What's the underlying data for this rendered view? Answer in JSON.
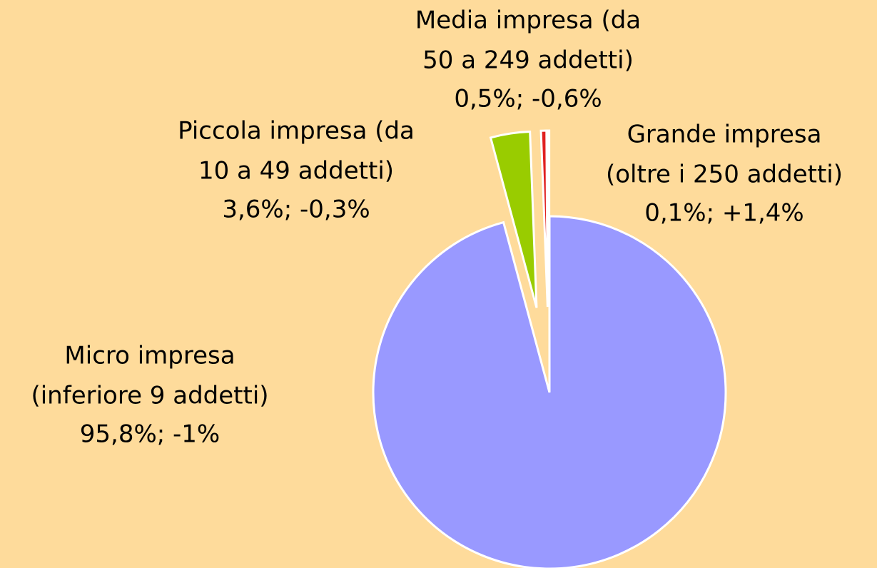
{
  "chart_data": {
    "type": "pie",
    "categories": [
      [
        "Micro impresa",
        "(inferiore 9 addetti)"
      ],
      [
        "Piccola impresa (da",
        "10 a 49 addetti)"
      ],
      [
        "Media impresa (da",
        "50 a 249 addetti)"
      ],
      [
        "Grande impresa",
        "(oltre i 250 addetti)"
      ]
    ],
    "values": [
      95.8,
      3.6,
      0.5,
      0.1
    ],
    "value_labels": [
      "95,8%; -1%",
      "3,6%; -0,3%",
      "0,5%; -0,6%",
      "0,1%; +1,4%"
    ],
    "colors": [
      "#9999ff",
      "#99cc00",
      "#e02020",
      "#222222"
    ]
  }
}
